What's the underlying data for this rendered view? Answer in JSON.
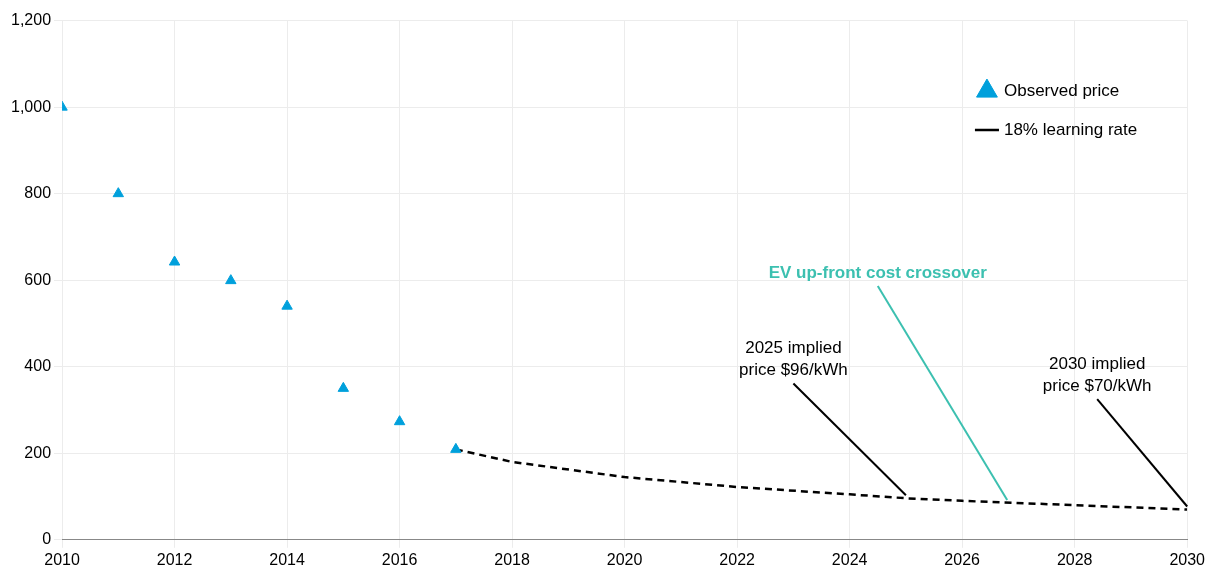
{
  "chart_data": {
    "type": "scatter",
    "xlim": [
      2010,
      2030
    ],
    "xticks": [
      2010,
      2012,
      2014,
      2016,
      2018,
      2020,
      2022,
      2024,
      2026,
      2028,
      2030
    ],
    "ylim": [
      0,
      1200
    ],
    "yticks": [
      0,
      200,
      400,
      600,
      800,
      {
        "value": 1000,
        "label": "1,000"
      },
      {
        "value": 1200,
        "label": "1,200"
      }
    ],
    "grid": true,
    "legend": "top right",
    "series": [
      {
        "name": "Observed price",
        "type": "scatter",
        "marker": "triangle",
        "color": "#00a0dc",
        "x": [
          2010,
          2011,
          2012,
          2013,
          2014,
          2015,
          2016,
          2017
        ],
        "values": [
          1000,
          800,
          642,
          599,
          540,
          350,
          273,
          209
        ]
      },
      {
        "name": "18% learning rate",
        "type": "line",
        "marker": "none",
        "line_style": "dashed",
        "color": "#000000",
        "x": [
          2017,
          2018,
          2020,
          2022,
          2024,
          2025,
          2026,
          2028,
          2030
        ],
        "values": [
          209,
          180,
          145,
          122,
          105,
          96,
          90,
          80,
          70
        ]
      }
    ],
    "annotations": [
      {
        "text": "2025 implied price $96/kWh",
        "x": 2025,
        "y": 96
      },
      {
        "text": "2030 implied price $70/kWh",
        "x": 2030,
        "y": 70
      },
      {
        "text": "EV up-front cost crossover",
        "x": 2026.8,
        "y": 85
      }
    ]
  }
}
